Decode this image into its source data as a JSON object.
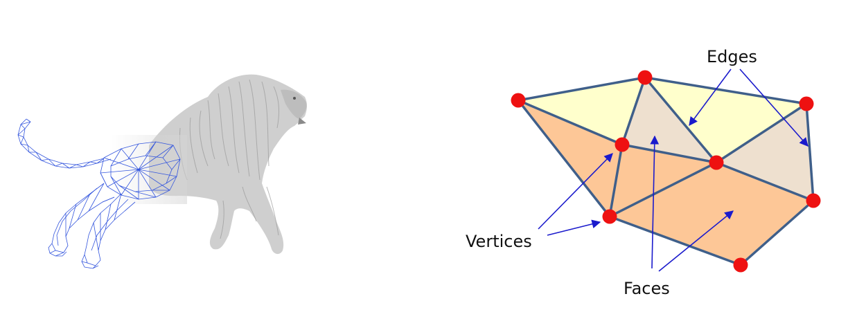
{
  "labels": {
    "edges": "Edges",
    "vertices": "Vertices",
    "faces": "Faces"
  },
  "colors": {
    "edge_stroke": "#3f5f8a",
    "vertex_fill": "#ee1111",
    "face_yellow": "#ffffcc",
    "face_beige": "#eee0cf",
    "face_orange": "#fdc797",
    "arrow": "#1a1acc",
    "wireframe": "#3355dd",
    "fur": "#cfcfcf"
  }
}
